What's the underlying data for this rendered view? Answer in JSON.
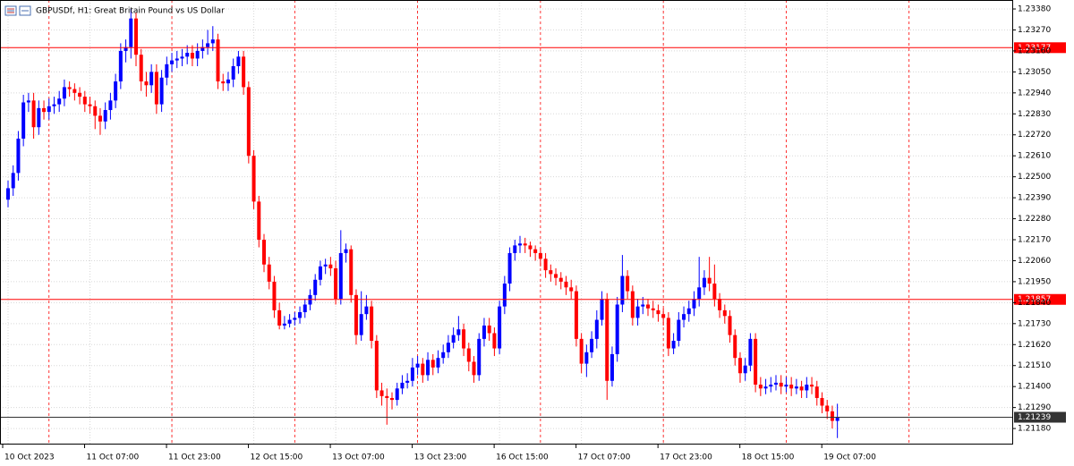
{
  "chart_data": {
    "type": "candlestick",
    "title": "GBPUSDf, H1:  Great Britain Pound vs US Dollar",
    "bull_color": "#0000ff",
    "bear_color": "#ff0000",
    "grid": true,
    "ylim": [
      1.21096,
      1.23427
    ],
    "yticks": [
      {
        "value": 1.2338,
        "label": "1.23380"
      },
      {
        "value": 1.2327,
        "label": "1.23270"
      },
      {
        "value": 1.2316,
        "label": "1.23160"
      },
      {
        "value": 1.2305,
        "label": "1.23050"
      },
      {
        "value": 1.2294,
        "label": "1.22940"
      },
      {
        "value": 1.2283,
        "label": "1.22830"
      },
      {
        "value": 1.2272,
        "label": "1.22720"
      },
      {
        "value": 1.2261,
        "label": "1.22610"
      },
      {
        "value": 1.225,
        "label": "1.22500"
      },
      {
        "value": 1.2239,
        "label": "1.22390"
      },
      {
        "value": 1.2228,
        "label": "1.22280"
      },
      {
        "value": 1.2217,
        "label": "1.22170"
      },
      {
        "value": 1.2206,
        "label": "1.22060"
      },
      {
        "value": 1.2195,
        "label": "1.21950"
      },
      {
        "value": 1.2184,
        "label": "1.21840"
      },
      {
        "value": 1.2173,
        "label": "1.21730"
      },
      {
        "value": 1.2162,
        "label": "1.21620"
      },
      {
        "value": 1.2151,
        "label": "1.21510"
      },
      {
        "value": 1.214,
        "label": "1.21400"
      },
      {
        "value": 1.2129,
        "label": "1.21290"
      },
      {
        "value": 1.2118,
        "label": "1.21180"
      }
    ],
    "xticks": [
      {
        "value": 0,
        "label": "10 Oct 2023"
      },
      {
        "value": 16,
        "label": "11 Oct 07:00"
      },
      {
        "value": 32,
        "label": "11 Oct 23:00"
      },
      {
        "value": 48,
        "label": "12 Oct 15:00"
      },
      {
        "value": 64,
        "label": "13 Oct 07:00"
      },
      {
        "value": 80,
        "label": "13 Oct 23:00"
      },
      {
        "value": 96,
        "label": "16 Oct 15:00"
      },
      {
        "value": 112,
        "label": "17 Oct 07:00"
      },
      {
        "value": 128,
        "label": "17 Oct 23:00"
      },
      {
        "value": 144,
        "label": "18 Oct 15:00"
      },
      {
        "value": 160,
        "label": "19 Oct 07:00"
      }
    ],
    "levels": [
      {
        "value": 1.23177,
        "color": "#ff0000"
      },
      {
        "value": 1.21857,
        "color": "#ff0000"
      },
      {
        "value": 1.21239,
        "color": "#333333"
      }
    ],
    "candles": [
      [
        1.2238,
        1.2248,
        1.2234,
        1.2244
      ],
      [
        1.2244,
        1.2256,
        1.224,
        1.2252
      ],
      [
        1.2252,
        1.2274,
        1.2248,
        1.227
      ],
      [
        1.227,
        1.2293,
        1.2266,
        1.2289
      ],
      [
        1.2289,
        1.2294,
        1.2284,
        1.229
      ],
      [
        1.229,
        1.2294,
        1.227,
        1.2276
      ],
      [
        1.2276,
        1.229,
        1.2272,
        1.2286
      ],
      [
        1.2286,
        1.229,
        1.228,
        1.2284
      ],
      [
        1.2284,
        1.2291,
        1.228,
        1.2287
      ],
      [
        1.2287,
        1.2292,
        1.2283,
        1.2288
      ],
      [
        1.2288,
        1.2295,
        1.2284,
        1.2291
      ],
      [
        1.2291,
        1.2301,
        1.2287,
        1.2297
      ],
      [
        1.2297,
        1.23,
        1.2292,
        1.2296
      ],
      [
        1.2296,
        1.2299,
        1.229,
        1.2294
      ],
      [
        1.2294,
        1.2297,
        1.2288,
        1.2292
      ],
      [
        1.2292,
        1.2295,
        1.2284,
        1.2288
      ],
      [
        1.2288,
        1.2292,
        1.2283,
        1.2287
      ],
      [
        1.2287,
        1.229,
        1.2275,
        1.2282
      ],
      [
        1.2282,
        1.2286,
        1.2272,
        1.2279
      ],
      [
        1.2279,
        1.2289,
        1.2275,
        1.2285
      ],
      [
        1.2285,
        1.2294,
        1.228,
        1.229
      ],
      [
        1.229,
        1.2304,
        1.2286,
        1.23
      ],
      [
        1.23,
        1.232,
        1.2296,
        1.2316
      ],
      [
        1.2316,
        1.2322,
        1.231,
        1.2318
      ],
      [
        1.2318,
        1.2338,
        1.2312,
        1.2333
      ],
      [
        1.2333,
        1.2336,
        1.2308,
        1.2314
      ],
      [
        1.2314,
        1.2317,
        1.2295,
        1.23
      ],
      [
        1.23,
        1.2305,
        1.2292,
        1.2298
      ],
      [
        1.2298,
        1.2309,
        1.2294,
        1.2305
      ],
      [
        1.2305,
        1.2309,
        1.2283,
        1.2288
      ],
      [
        1.2288,
        1.2306,
        1.2284,
        1.2302
      ],
      [
        1.2302,
        1.2313,
        1.2298,
        1.2309
      ],
      [
        1.2309,
        1.2315,
        1.2305,
        1.2311
      ],
      [
        1.2311,
        1.2316,
        1.2307,
        1.2312
      ],
      [
        1.2312,
        1.2317,
        1.2308,
        1.2313
      ],
      [
        1.2313,
        1.2319,
        1.2309,
        1.2315
      ],
      [
        1.2315,
        1.2319,
        1.2308,
        1.2312
      ],
      [
        1.2312,
        1.232,
        1.2308,
        1.2316
      ],
      [
        1.2316,
        1.2322,
        1.2312,
        1.2318
      ],
      [
        1.2318,
        1.2327,
        1.2314,
        1.232
      ],
      [
        1.232,
        1.2329,
        1.2316,
        1.2322
      ],
      [
        1.2322,
        1.2325,
        1.2296,
        1.23
      ],
      [
        1.23,
        1.2304,
        1.2295,
        1.2299
      ],
      [
        1.2299,
        1.2305,
        1.2295,
        1.2301
      ],
      [
        1.2301,
        1.2312,
        1.2297,
        1.2308
      ],
      [
        1.2308,
        1.2316,
        1.2304,
        1.2313
      ],
      [
        1.2313,
        1.2316,
        1.2293,
        1.2297
      ],
      [
        1.2297,
        1.23,
        1.2257,
        1.2261
      ],
      [
        1.2261,
        1.2264,
        1.2233,
        1.2237
      ],
      [
        1.2237,
        1.224,
        1.2213,
        1.2217
      ],
      [
        1.2217,
        1.222,
        1.22,
        1.2204
      ],
      [
        1.2204,
        1.2208,
        1.2191,
        1.2195
      ],
      [
        1.2195,
        1.2198,
        1.2176,
        1.218
      ],
      [
        1.218,
        1.2184,
        1.217,
        1.2172
      ],
      [
        1.2172,
        1.2177,
        1.217,
        1.2173
      ],
      [
        1.2173,
        1.2178,
        1.2171,
        1.2175
      ],
      [
        1.2175,
        1.2179,
        1.2172,
        1.2176
      ],
      [
        1.2176,
        1.2182,
        1.2173,
        1.2179
      ],
      [
        1.2179,
        1.2186,
        1.2176,
        1.2183
      ],
      [
        1.2183,
        1.2191,
        1.218,
        1.2188
      ],
      [
        1.2188,
        1.2199,
        1.2185,
        1.2196
      ],
      [
        1.2196,
        1.2206,
        1.2193,
        1.2203
      ],
      [
        1.2203,
        1.2207,
        1.2199,
        1.2204
      ],
      [
        1.2204,
        1.2208,
        1.2198,
        1.2202
      ],
      [
        1.2202,
        1.2206,
        1.2183,
        1.2186
      ],
      [
        1.2186,
        1.2222,
        1.2183,
        1.221
      ],
      [
        1.221,
        1.2215,
        1.2205,
        1.2212
      ],
      [
        1.2212,
        1.2214,
        1.2184,
        1.2188
      ],
      [
        1.2188,
        1.2191,
        1.2162,
        1.2167
      ],
      [
        1.2167,
        1.219,
        1.2164,
        1.2178
      ],
      [
        1.2178,
        1.2188,
        1.2175,
        1.2182
      ],
      [
        1.2182,
        1.2185,
        1.216,
        1.2164
      ],
      [
        1.2164,
        1.2167,
        1.2134,
        1.2138
      ],
      [
        1.2138,
        1.2142,
        1.213,
        1.2135
      ],
      [
        1.2135,
        1.2139,
        1.212,
        1.2134
      ],
      [
        1.2134,
        1.2137,
        1.2128,
        1.2133
      ],
      [
        1.2133,
        1.2142,
        1.213,
        1.2139
      ],
      [
        1.2139,
        1.2146,
        1.2136,
        1.2142
      ],
      [
        1.2142,
        1.2147,
        1.2139,
        1.2143
      ],
      [
        1.2143,
        1.2155,
        1.214,
        1.215
      ],
      [
        1.215,
        1.2156,
        1.2146,
        1.2152
      ],
      [
        1.2152,
        1.2155,
        1.2142,
        1.2146
      ],
      [
        1.2146,
        1.2158,
        1.2143,
        1.2154
      ],
      [
        1.2154,
        1.2157,
        1.2146,
        1.215
      ],
      [
        1.215,
        1.2159,
        1.2147,
        1.2155
      ],
      [
        1.2155,
        1.2162,
        1.2152,
        1.2158
      ],
      [
        1.2158,
        1.2167,
        1.2155,
        1.2163
      ],
      [
        1.2163,
        1.2171,
        1.216,
        1.2167
      ],
      [
        1.2167,
        1.2177,
        1.2164,
        1.217
      ],
      [
        1.217,
        1.2173,
        1.2156,
        1.216
      ],
      [
        1.216,
        1.2163,
        1.2148,
        1.2153
      ],
      [
        1.2153,
        1.2156,
        1.2142,
        1.2146
      ],
      [
        1.2146,
        1.2168,
        1.2143,
        1.2165
      ],
      [
        1.2165,
        1.2176,
        1.2161,
        1.2172
      ],
      [
        1.2172,
        1.2176,
        1.2164,
        1.2168
      ],
      [
        1.2168,
        1.2171,
        1.2156,
        1.216
      ],
      [
        1.216,
        1.2185,
        1.2157,
        1.2182
      ],
      [
        1.2182,
        1.2198,
        1.2178,
        1.2194
      ],
      [
        1.2194,
        1.2213,
        1.219,
        1.221
      ],
      [
        1.221,
        1.2217,
        1.2206,
        1.2214
      ],
      [
        1.2214,
        1.2219,
        1.221,
        1.2215
      ],
      [
        1.2215,
        1.2218,
        1.221,
        1.2214
      ],
      [
        1.2214,
        1.2216,
        1.2208,
        1.2212
      ],
      [
        1.2212,
        1.2214,
        1.2206,
        1.221
      ],
      [
        1.221,
        1.2213,
        1.2203,
        1.2207
      ],
      [
        1.2207,
        1.221,
        1.2197,
        1.2201
      ],
      [
        1.2201,
        1.2204,
        1.2195,
        1.2199
      ],
      [
        1.2199,
        1.2202,
        1.2193,
        1.2197
      ],
      [
        1.2197,
        1.22,
        1.2191,
        1.2195
      ],
      [
        1.2195,
        1.2198,
        1.2188,
        1.2192
      ],
      [
        1.2192,
        1.2196,
        1.2186,
        1.219
      ],
      [
        1.219,
        1.2193,
        1.2161,
        1.2165
      ],
      [
        1.2165,
        1.2168,
        1.2147,
        1.2152
      ],
      [
        1.2152,
        1.2162,
        1.2145,
        1.2158
      ],
      [
        1.2158,
        1.2169,
        1.2155,
        1.2165
      ],
      [
        1.2165,
        1.218,
        1.216,
        1.2175
      ],
      [
        1.2175,
        1.219,
        1.2172,
        1.2186
      ],
      [
        1.2186,
        1.2189,
        1.2133,
        1.2143
      ],
      [
        1.2143,
        1.2161,
        1.214,
        1.2157
      ],
      [
        1.2157,
        1.2187,
        1.2153,
        1.2183
      ],
      [
        1.2183,
        1.2209,
        1.2179,
        1.2198
      ],
      [
        1.2198,
        1.2201,
        1.2186,
        1.219
      ],
      [
        1.219,
        1.2193,
        1.2172,
        1.2176
      ],
      [
        1.2176,
        1.2186,
        1.2172,
        1.2182
      ],
      [
        1.2182,
        1.2187,
        1.2178,
        1.2183
      ],
      [
        1.2183,
        1.2186,
        1.2177,
        1.2181
      ],
      [
        1.2181,
        1.2185,
        1.2176,
        1.218
      ],
      [
        1.218,
        1.2183,
        1.2174,
        1.2178
      ],
      [
        1.2178,
        1.2181,
        1.2172,
        1.2176
      ],
      [
        1.2176,
        1.2179,
        1.2156,
        1.216
      ],
      [
        1.216,
        1.2168,
        1.2157,
        1.2164
      ],
      [
        1.2164,
        1.2179,
        1.2161,
        1.2175
      ],
      [
        1.2175,
        1.2182,
        1.2171,
        1.2178
      ],
      [
        1.2178,
        1.2185,
        1.2174,
        1.2181
      ],
      [
        1.2181,
        1.219,
        1.2177,
        1.2186
      ],
      [
        1.2186,
        1.2208,
        1.2182,
        1.2192
      ],
      [
        1.2192,
        1.2201,
        1.2188,
        1.2197
      ],
      [
        1.2197,
        1.2208,
        1.219,
        1.2194
      ],
      [
        1.2194,
        1.2204,
        1.2182,
        1.2186
      ],
      [
        1.2186,
        1.2189,
        1.2176,
        1.218
      ],
      [
        1.218,
        1.2183,
        1.2173,
        1.2177
      ],
      [
        1.2177,
        1.218,
        1.2163,
        1.2167
      ],
      [
        1.2167,
        1.217,
        1.2151,
        1.2155
      ],
      [
        1.2155,
        1.2158,
        1.2142,
        1.2147
      ],
      [
        1.2147,
        1.2155,
        1.2143,
        1.2151
      ],
      [
        1.2151,
        1.2168,
        1.2148,
        1.2165
      ],
      [
        1.2165,
        1.2168,
        1.2137,
        1.2141
      ],
      [
        1.2141,
        1.2145,
        1.2135,
        1.2139
      ],
      [
        1.2139,
        1.2144,
        1.2136,
        1.214
      ],
      [
        1.214,
        1.2145,
        1.2137,
        1.2141
      ],
      [
        1.2141,
        1.2146,
        1.2138,
        1.2142
      ],
      [
        1.2142,
        1.2146,
        1.2136,
        1.214
      ],
      [
        1.214,
        1.2145,
        1.2137,
        1.2141
      ],
      [
        1.2141,
        1.2145,
        1.2135,
        1.2139
      ],
      [
        1.2139,
        1.2144,
        1.2136,
        1.214
      ],
      [
        1.214,
        1.2143,
        1.2134,
        1.2138
      ],
      [
        1.2138,
        1.2145,
        1.2134,
        1.2141
      ],
      [
        1.2141,
        1.2145,
        1.2136,
        1.214
      ],
      [
        1.214,
        1.2143,
        1.213,
        1.2134
      ],
      [
        1.2134,
        1.2137,
        1.2126,
        1.213
      ],
      [
        1.213,
        1.2133,
        1.2123,
        1.2127
      ],
      [
        1.2127,
        1.213,
        1.2118,
        1.2122
      ],
      [
        1.2122,
        1.2131,
        1.2113,
        1.21239
      ]
    ]
  }
}
